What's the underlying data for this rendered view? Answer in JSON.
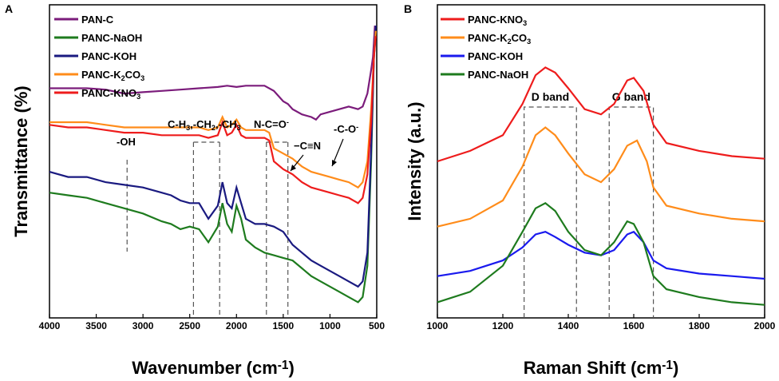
{
  "chart_data": [
    {
      "panel": "A",
      "type": "line",
      "xlabel": "Wavenumber (cm",
      "xlabel_sup": "-1",
      "xlabel_close": ")",
      "ylabel": "Transmittance (%)",
      "xlim": [
        4000,
        500
      ],
      "xticks": [
        "4000",
        "3500",
        "3000",
        "2500",
        "2000",
        "1500",
        "1000",
        "500"
      ],
      "series": [
        {
          "name": "PAN-C",
          "color": "#7b1c7b",
          "legend": [
            "PAN-C"
          ],
          "points": [
            [
              4000,
              88
            ],
            [
              3800,
              88
            ],
            [
              3600,
              88
            ],
            [
              3400,
              87.5
            ],
            [
              3200,
              86
            ],
            [
              3000,
              86.5
            ],
            [
              2800,
              87
            ],
            [
              2600,
              87.5
            ],
            [
              2400,
              88
            ],
            [
              2200,
              88.5
            ],
            [
              2100,
              89
            ],
            [
              2000,
              88.5
            ],
            [
              1900,
              89
            ],
            [
              1800,
              89
            ],
            [
              1700,
              89
            ],
            [
              1600,
              87
            ],
            [
              1500,
              83
            ],
            [
              1450,
              82
            ],
            [
              1400,
              80
            ],
            [
              1300,
              78
            ],
            [
              1200,
              77
            ],
            [
              1150,
              76
            ],
            [
              1100,
              78
            ],
            [
              1000,
              79
            ],
            [
              900,
              80
            ],
            [
              800,
              81
            ],
            [
              700,
              80
            ],
            [
              650,
              81
            ],
            [
              600,
              86
            ],
            [
              560,
              95
            ],
            [
              540,
              100
            ],
            [
              520,
              112
            ]
          ]
        },
        {
          "name": "PANC-NaOH",
          "color": "#1e7b1e",
          "legend": [
            "PANC-NaOH"
          ],
          "points": [
            [
              4000,
              48
            ],
            [
              3800,
              47
            ],
            [
              3600,
              46
            ],
            [
              3400,
              44
            ],
            [
              3200,
              42
            ],
            [
              3000,
              40
            ],
            [
              2800,
              37
            ],
            [
              2700,
              36
            ],
            [
              2600,
              34
            ],
            [
              2500,
              35
            ],
            [
              2400,
              34
            ],
            [
              2300,
              29
            ],
            [
              2200,
              35
            ],
            [
              2150,
              44
            ],
            [
              2100,
              36
            ],
            [
              2050,
              33
            ],
            [
              2000,
              43
            ],
            [
              1950,
              38
            ],
            [
              1900,
              30
            ],
            [
              1800,
              27
            ],
            [
              1700,
              25
            ],
            [
              1600,
              24
            ],
            [
              1500,
              23
            ],
            [
              1400,
              22
            ],
            [
              1300,
              19
            ],
            [
              1200,
              16
            ],
            [
              1100,
              14
            ],
            [
              1000,
              12
            ],
            [
              900,
              10
            ],
            [
              800,
              8
            ],
            [
              700,
              6
            ],
            [
              650,
              8
            ],
            [
              600,
              20
            ],
            [
              560,
              60
            ],
            [
              530,
              100
            ],
            [
              510,
              110
            ]
          ]
        },
        {
          "name": "PANC-KOH",
          "color": "#1a1a80",
          "legend": [
            "PANC-KOH"
          ],
          "points": [
            [
              4000,
              56
            ],
            [
              3800,
              54
            ],
            [
              3600,
              54
            ],
            [
              3400,
              52
            ],
            [
              3200,
              51
            ],
            [
              3000,
              50
            ],
            [
              2800,
              48
            ],
            [
              2700,
              47
            ],
            [
              2600,
              45
            ],
            [
              2500,
              44
            ],
            [
              2400,
              44
            ],
            [
              2300,
              38
            ],
            [
              2200,
              43
            ],
            [
              2150,
              52
            ],
            [
              2100,
              44
            ],
            [
              2050,
              42
            ],
            [
              2000,
              50
            ],
            [
              1950,
              44
            ],
            [
              1900,
              38
            ],
            [
              1800,
              36
            ],
            [
              1700,
              36
            ],
            [
              1600,
              35
            ],
            [
              1500,
              33
            ],
            [
              1400,
              28
            ],
            [
              1300,
              25
            ],
            [
              1200,
              22
            ],
            [
              1100,
              20
            ],
            [
              1000,
              18
            ],
            [
              900,
              16
            ],
            [
              800,
              14
            ],
            [
              700,
              12
            ],
            [
              650,
              14
            ],
            [
              600,
              25
            ],
            [
              560,
              65
            ],
            [
              530,
              100
            ],
            [
              510,
              112
            ]
          ]
        },
        {
          "name": "PANC-K2CO3",
          "color": "#ff8c1a",
          "legend": [
            "PANC-K",
            "2",
            "CO",
            "3"
          ],
          "points": [
            [
              4000,
              75
            ],
            [
              3800,
              75
            ],
            [
              3600,
              75
            ],
            [
              3400,
              74
            ],
            [
              3200,
              73
            ],
            [
              3000,
              73
            ],
            [
              2800,
              73
            ],
            [
              2600,
              73
            ],
            [
              2400,
              73
            ],
            [
              2300,
              72
            ],
            [
              2200,
              73
            ],
            [
              2150,
              77
            ],
            [
              2100,
              73
            ],
            [
              2050,
              74
            ],
            [
              2000,
              76
            ],
            [
              1950,
              73
            ],
            [
              1900,
              72
            ],
            [
              1800,
              72
            ],
            [
              1700,
              72
            ],
            [
              1650,
              71
            ],
            [
              1600,
              65
            ],
            [
              1500,
              63
            ],
            [
              1400,
              61
            ],
            [
              1300,
              58
            ],
            [
              1200,
              56
            ],
            [
              1100,
              55
            ],
            [
              1000,
              54
            ],
            [
              900,
              53
            ],
            [
              800,
              52
            ],
            [
              700,
              50
            ],
            [
              650,
              52
            ],
            [
              600,
              60
            ],
            [
              560,
              80
            ],
            [
              530,
              100
            ],
            [
              510,
              110
            ]
          ]
        },
        {
          "name": "PANC-KNO3",
          "color": "#ee1c1c",
          "legend": [
            "PANC-KNO",
            "3"
          ],
          "points": [
            [
              4000,
              74
            ],
            [
              3800,
              73
            ],
            [
              3600,
              73
            ],
            [
              3400,
              72
            ],
            [
              3200,
              71
            ],
            [
              3000,
              71
            ],
            [
              2800,
              70
            ],
            [
              2600,
              70
            ],
            [
              2400,
              70
            ],
            [
              2300,
              69
            ],
            [
              2200,
              70
            ],
            [
              2150,
              75
            ],
            [
              2100,
              70
            ],
            [
              2050,
              71
            ],
            [
              2000,
              74
            ],
            [
              1950,
              70
            ],
            [
              1900,
              69
            ],
            [
              1800,
              69
            ],
            [
              1700,
              69
            ],
            [
              1650,
              68
            ],
            [
              1600,
              60
            ],
            [
              1500,
              57
            ],
            [
              1400,
              55
            ],
            [
              1300,
              52
            ],
            [
              1200,
              50
            ],
            [
              1100,
              49
            ],
            [
              1000,
              48
            ],
            [
              900,
              47
            ],
            [
              800,
              46
            ],
            [
              700,
              44
            ],
            [
              650,
              46
            ],
            [
              600,
              55
            ],
            [
              560,
              75
            ],
            [
              530,
              100
            ],
            [
              510,
              108
            ]
          ]
        }
      ],
      "annotations": [
        {
          "text": "-OH"
        },
        {
          "text": "C-H",
          "subs": [
            "3",
            "2",
            "3"
          ],
          "full": "C-H3,-CH2,-CH3"
        },
        {
          "text": "N-C=O",
          "sup": "-"
        },
        {
          "text": "−C≡N"
        },
        {
          "text": "-C-O",
          "sup": "-"
        }
      ],
      "dashed_lines_at": [
        3170,
        2460,
        2180,
        1680,
        1450
      ],
      "dashed_boxes": [
        [
          2460,
          2180
        ],
        [
          1680,
          1450
        ]
      ]
    },
    {
      "panel": "B",
      "type": "line",
      "xlabel": "Raman Shift (cm",
      "xlabel_sup": "-1",
      "xlabel_close": ")",
      "ylabel": "Intensity (a.u.)",
      "xlim": [
        1000,
        2000
      ],
      "xticks": [
        "1000",
        "1200",
        "1400",
        "1600",
        "1800",
        "2000"
      ],
      "series": [
        {
          "name": "PANC-KNO3",
          "color": "#ee1c1c",
          "legend": [
            "PANC-KNO",
            "3"
          ],
          "points": [
            [
              1000,
              60
            ],
            [
              1100,
              64
            ],
            [
              1200,
              70
            ],
            [
              1260,
              82
            ],
            [
              1300,
              93
            ],
            [
              1330,
              96
            ],
            [
              1360,
              94
            ],
            [
              1400,
              88
            ],
            [
              1450,
              80
            ],
            [
              1500,
              78
            ],
            [
              1540,
              82
            ],
            [
              1580,
              91
            ],
            [
              1600,
              92
            ],
            [
              1630,
              87
            ],
            [
              1660,
              74
            ],
            [
              1700,
              67
            ],
            [
              1800,
              64
            ],
            [
              1900,
              62
            ],
            [
              2000,
              61
            ]
          ]
        },
        {
          "name": "PANC-K2CO3",
          "color": "#ff8c1a",
          "legend": [
            "PANC-K",
            "2",
            "CO",
            "3"
          ],
          "points": [
            [
              1000,
              35
            ],
            [
              1100,
              38
            ],
            [
              1200,
              45
            ],
            [
              1260,
              58
            ],
            [
              1300,
              70
            ],
            [
              1330,
              73
            ],
            [
              1360,
              70
            ],
            [
              1400,
              63
            ],
            [
              1450,
              55
            ],
            [
              1500,
              52
            ],
            [
              1540,
              57
            ],
            [
              1580,
              66
            ],
            [
              1610,
              68
            ],
            [
              1640,
              60
            ],
            [
              1660,
              50
            ],
            [
              1700,
              43
            ],
            [
              1800,
              40
            ],
            [
              1900,
              38
            ],
            [
              2000,
              37
            ]
          ]
        },
        {
          "name": "PANC-KOH",
          "color": "#1a1aee",
          "legend": [
            "PANC-KOH"
          ],
          "points": [
            [
              1000,
              16
            ],
            [
              1100,
              18
            ],
            [
              1200,
              22
            ],
            [
              1260,
              27
            ],
            [
              1300,
              32
            ],
            [
              1330,
              33
            ],
            [
              1360,
              31
            ],
            [
              1400,
              28
            ],
            [
              1450,
              25
            ],
            [
              1500,
              24
            ],
            [
              1540,
              26
            ],
            [
              1580,
              32
            ],
            [
              1600,
              33
            ],
            [
              1630,
              29
            ],
            [
              1660,
              22
            ],
            [
              1700,
              19
            ],
            [
              1800,
              17
            ],
            [
              1900,
              16
            ],
            [
              2000,
              15
            ]
          ]
        },
        {
          "name": "PANC-NaOH",
          "color": "#1e7b1e",
          "legend": [
            "PANC-NaOH"
          ],
          "points": [
            [
              1000,
              6
            ],
            [
              1100,
              10
            ],
            [
              1200,
              20
            ],
            [
              1260,
              33
            ],
            [
              1300,
              42
            ],
            [
              1330,
              44
            ],
            [
              1360,
              41
            ],
            [
              1400,
              33
            ],
            [
              1450,
              26
            ],
            [
              1500,
              24
            ],
            [
              1540,
              29
            ],
            [
              1580,
              37
            ],
            [
              1600,
              36
            ],
            [
              1630,
              29
            ],
            [
              1660,
              16
            ],
            [
              1700,
              11
            ],
            [
              1800,
              8
            ],
            [
              1900,
              6
            ],
            [
              2000,
              5
            ]
          ]
        }
      ],
      "band_labels": [
        "D band",
        "G band"
      ],
      "band_ranges": [
        [
          1265,
          1425
        ],
        [
          1525,
          1660
        ]
      ]
    }
  ],
  "panels": {
    "a": "A",
    "b": "B"
  }
}
